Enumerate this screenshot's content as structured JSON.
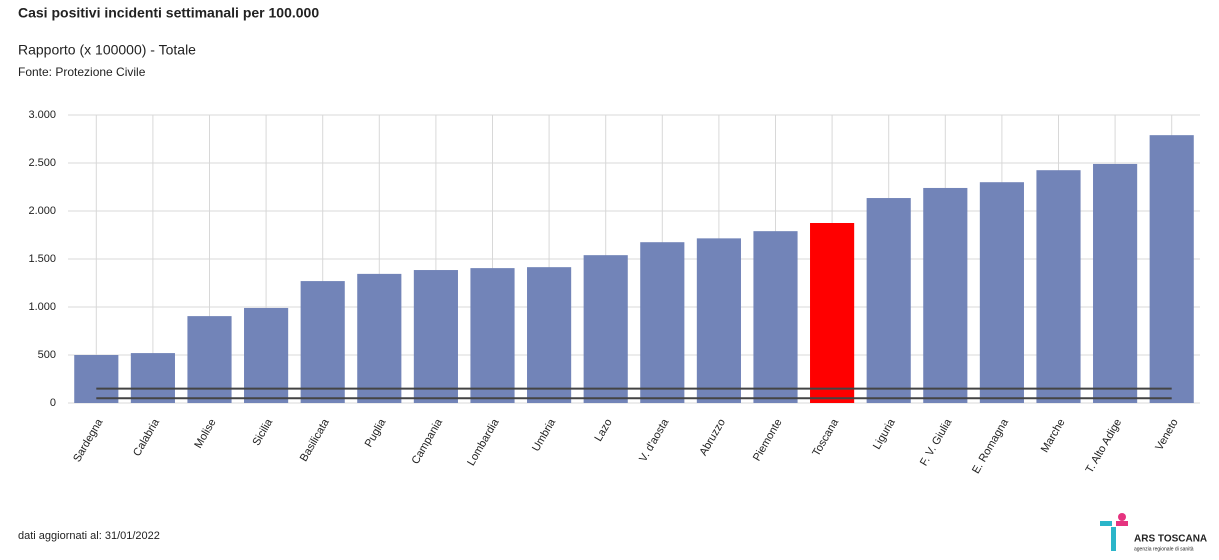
{
  "chart_data": {
    "type": "bar",
    "title": "Casi positivi incidenti settimanali per 100.000",
    "subtitle": "Rapporto (x 100000) - Totale",
    "source": "Fonte: Protezione Civile",
    "footer": "dati aggiornati al: 31/01/2022",
    "logo_text": "ARS TOSCANA",
    "logo_tagline": "agenzia regionale di sanità",
    "categories": [
      "Sardegna",
      "Calabria",
      "Molise",
      "Sicilia",
      "Basilicata",
      "Puglia",
      "Campania",
      "Lombardia",
      "Umbria",
      "Lazo",
      "V. d'aosta",
      "Abruzzo",
      "Piemonte",
      "Toscana",
      "Liguria",
      "F. V. Giulia",
      "E. Romagna",
      "Marche",
      "T. Alto Adige",
      "Veneto"
    ],
    "values": [
      500,
      520,
      905,
      990,
      1270,
      1345,
      1385,
      1405,
      1415,
      1540,
      1675,
      1715,
      1790,
      1875,
      2135,
      2240,
      2300,
      2425,
      2490,
      2790
    ],
    "colors": [
      "#7284b8",
      "#7284b8",
      "#7284b8",
      "#7284b8",
      "#7284b8",
      "#7284b8",
      "#7284b8",
      "#7284b8",
      "#7284b8",
      "#7284b8",
      "#7284b8",
      "#7284b8",
      "#7284b8",
      "#ff0000",
      "#7284b8",
      "#7284b8",
      "#7284b8",
      "#7284b8",
      "#7284b8",
      "#7284b8"
    ],
    "reference_lines": [
      150,
      50
    ],
    "reference_color": "#444444",
    "ylim": [
      0,
      3000
    ],
    "yticks": [
      0,
      500,
      {
        "value": 1000,
        "label": "1.000"
      },
      {
        "value": 1500,
        "label": "1.500"
      },
      {
        "value": 2000,
        "label": "2.000"
      },
      {
        "value": 2500,
        "label": "2.500"
      },
      {
        "value": 3000,
        "label": "3.000"
      }
    ],
    "grid": true
  }
}
